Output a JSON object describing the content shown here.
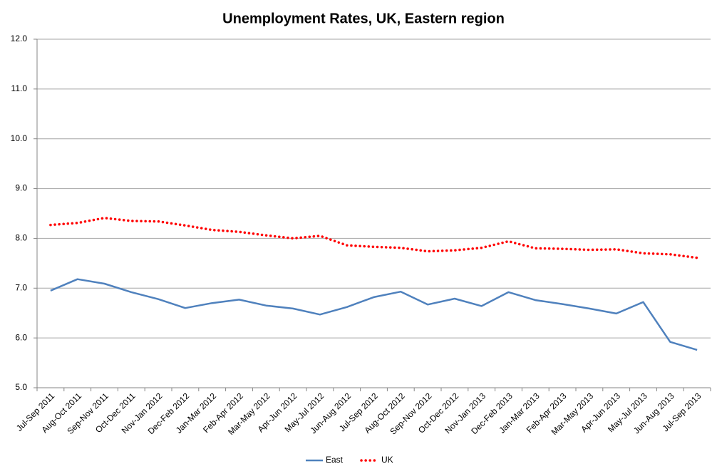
{
  "chart_data": {
    "type": "line",
    "title": "Unemployment Rates, UK, Eastern region",
    "categories": [
      "Jul-Sep 2011",
      "Aug-Oct 2011",
      "Sep-Nov 2011",
      "Oct-Dec 2011",
      "Nov-Jan 2012",
      "Dec-Feb 2012",
      "Jan-Mar 2012",
      "Feb-Apr 2012",
      "Mar-May 2012",
      "Apr-Jun 2012",
      "May-Jul 2012",
      "Jun-Aug 2012",
      "Jul-Sep 2012",
      "Aug-Oct 2012",
      "Sep-Nov 2012",
      "Oct-Dec 2012",
      "Nov-Jan 2013",
      "Dec-Feb 2013",
      "Jan-Mar 2013",
      "Feb-Apr 2013",
      "Mar-May 2013",
      "Apr-Jun 2013",
      "May-Jul 2013",
      "Jun-Aug 2013",
      "Jul-Sep 2013"
    ],
    "series": [
      {
        "name": "East",
        "color": "#4f81bd",
        "style": "solid",
        "values": [
          6.95,
          7.18,
          7.09,
          6.92,
          6.78,
          6.6,
          6.7,
          6.77,
          6.65,
          6.59,
          6.47,
          6.62,
          6.82,
          6.93,
          6.67,
          6.79,
          6.64,
          6.92,
          6.76,
          6.68,
          6.59,
          6.49,
          6.72,
          5.92,
          5.76
        ]
      },
      {
        "name": "UK",
        "color": "#ff0000",
        "style": "dotted",
        "values": [
          8.27,
          8.31,
          8.41,
          8.35,
          8.34,
          8.26,
          8.17,
          8.13,
          8.06,
          8.0,
          8.05,
          7.86,
          7.83,
          7.81,
          7.74,
          7.76,
          7.81,
          7.94,
          7.8,
          7.79,
          7.77,
          7.78,
          7.7,
          7.68,
          7.61
        ]
      }
    ],
    "ylim": [
      5,
      12
    ],
    "yticks": [
      {
        "value": 5,
        "label": "5.0"
      },
      {
        "value": 6,
        "label": "6.0"
      },
      {
        "value": 7,
        "label": "7.0"
      },
      {
        "value": 8,
        "label": "8.0"
      },
      {
        "value": 9,
        "label": "9.0"
      },
      {
        "value": 10,
        "label": "10.0"
      },
      {
        "value": 11,
        "label": "11.0"
      },
      {
        "value": 12,
        "label": "12.0"
      }
    ],
    "grid": true,
    "legend": "bottom"
  }
}
